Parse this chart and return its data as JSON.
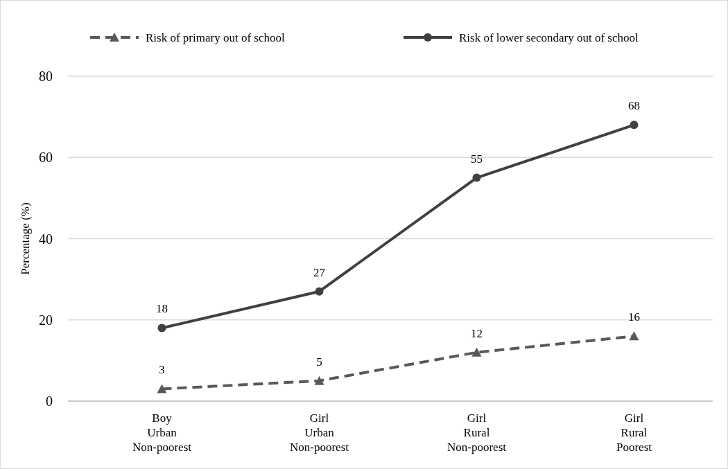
{
  "chart_data": {
    "type": "line",
    "ylabel": "Percentage (%)",
    "categories": [
      "Boy\nUrban\nNon-poorest",
      "Girl\nUrban\nNon-poorest",
      "Girl\nRural\nNon-poorest",
      "Girl\nRural\nPoorest"
    ],
    "series": [
      {
        "name": "Risk of primary out of school",
        "color": "#595959",
        "values": [
          3,
          5,
          12,
          16
        ],
        "marker": "triangle",
        "line_style": "dashed"
      },
      {
        "name": "Risk of lower secondary out of school",
        "color": "#404040",
        "values": [
          18,
          27,
          55,
          68
        ],
        "marker": "circle",
        "line_style": "solid"
      }
    ],
    "ylim": [
      0,
      80
    ],
    "yticks": [
      0,
      20,
      40,
      60,
      80
    ],
    "grid": "y",
    "legend": "top",
    "data_labels": true
  }
}
